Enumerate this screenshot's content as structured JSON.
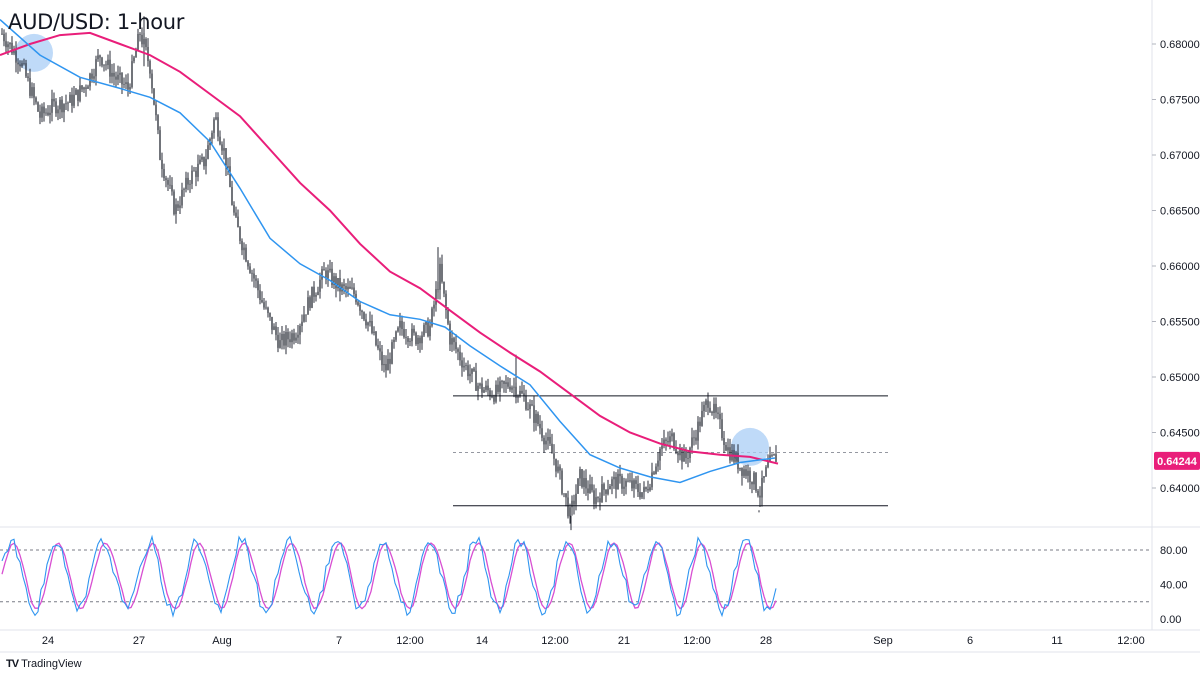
{
  "header": {
    "title": "AUD/USD: 1-hour"
  },
  "branding": {
    "logo_text": "TradingView"
  },
  "colors": {
    "candle": "#131722",
    "sma_fast": "#2f95f0",
    "sma_slow": "#e91e7a",
    "stoch_k": "#2f95f0",
    "stoch_d": "#d84fd2",
    "price_tag": "#e91e7a",
    "highlight": "#a9cdf5",
    "grid": "#e0e3eb"
  },
  "chart_data": {
    "type": "candlestick",
    "title": "AUD/USD: 1-hour",
    "y_axis": {
      "ticks": [
        "0.68000",
        "0.67500",
        "0.67000",
        "0.66500",
        "0.66000",
        "0.65500",
        "0.65000",
        "0.64500",
        "0.64000"
      ],
      "range": [
        0.6355,
        0.6825
      ]
    },
    "x_axis": {
      "ticks": [
        "24",
        "27",
        "Aug",
        "7",
        "12:00",
        "14",
        "12:00",
        "21",
        "12:00",
        "28",
        "Sep",
        "6",
        "11",
        "12:00"
      ]
    },
    "last_price": "0.64244",
    "price_path": [
      [
        0,
        0.6812
      ],
      [
        20,
        0.6785
      ],
      [
        40,
        0.6735
      ],
      [
        55,
        0.6745
      ],
      [
        70,
        0.6748
      ],
      [
        85,
        0.6762
      ],
      [
        100,
        0.679
      ],
      [
        115,
        0.677
      ],
      [
        128,
        0.676
      ],
      [
        140,
        0.681
      ],
      [
        150,
        0.678
      ],
      [
        160,
        0.67
      ],
      [
        175,
        0.665
      ],
      [
        190,
        0.668
      ],
      [
        205,
        0.6695
      ],
      [
        215,
        0.6735
      ],
      [
        225,
        0.67
      ],
      [
        235,
        0.664
      ],
      [
        250,
        0.66
      ],
      [
        265,
        0.656
      ],
      [
        280,
        0.653
      ],
      [
        295,
        0.654
      ],
      [
        310,
        0.657
      ],
      [
        325,
        0.6595
      ],
      [
        340,
        0.658
      ],
      [
        355,
        0.6575
      ],
      [
        370,
        0.6545
      ],
      [
        385,
        0.6505
      ],
      [
        400,
        0.6545
      ],
      [
        415,
        0.6535
      ],
      [
        430,
        0.6545
      ],
      [
        440,
        0.6595
      ],
      [
        450,
        0.6535
      ],
      [
        465,
        0.651
      ],
      [
        480,
        0.649
      ],
      [
        495,
        0.6485
      ],
      [
        510,
        0.6495
      ],
      [
        525,
        0.648
      ],
      [
        540,
        0.6455
      ],
      [
        555,
        0.6425
      ],
      [
        570,
        0.6375
      ],
      [
        580,
        0.641
      ],
      [
        595,
        0.639
      ],
      [
        610,
        0.6405
      ],
      [
        625,
        0.6405
      ],
      [
        645,
        0.6395
      ],
      [
        660,
        0.6435
      ],
      [
        672,
        0.6445
      ],
      [
        685,
        0.6425
      ],
      [
        698,
        0.6455
      ],
      [
        708,
        0.648
      ],
      [
        718,
        0.646
      ],
      [
        728,
        0.6435
      ],
      [
        740,
        0.642
      ],
      [
        752,
        0.641
      ],
      [
        760,
        0.6395
      ],
      [
        768,
        0.642
      ],
      [
        776,
        0.6428
      ]
    ],
    "sma_fast": [
      [
        0,
        0.6822
      ],
      [
        40,
        0.679
      ],
      [
        80,
        0.677
      ],
      [
        120,
        0.676
      ],
      [
        150,
        0.6752
      ],
      [
        180,
        0.6738
      ],
      [
        210,
        0.6712
      ],
      [
        240,
        0.667
      ],
      [
        270,
        0.6625
      ],
      [
        300,
        0.6602
      ],
      [
        330,
        0.6587
      ],
      [
        360,
        0.6568
      ],
      [
        390,
        0.6556
      ],
      [
        420,
        0.6552
      ],
      [
        445,
        0.6545
      ],
      [
        470,
        0.6528
      ],
      [
        500,
        0.651
      ],
      [
        530,
        0.6493
      ],
      [
        560,
        0.646
      ],
      [
        590,
        0.643
      ],
      [
        620,
        0.6418
      ],
      [
        650,
        0.641
      ],
      [
        680,
        0.6405
      ],
      [
        710,
        0.6415
      ],
      [
        740,
        0.6423
      ],
      [
        775,
        0.6427
      ]
    ],
    "sma_slow": [
      [
        0,
        0.679
      ],
      [
        30,
        0.68
      ],
      [
        60,
        0.6808
      ],
      [
        90,
        0.681
      ],
      [
        120,
        0.68
      ],
      [
        150,
        0.679
      ],
      [
        180,
        0.6775
      ],
      [
        210,
        0.6755
      ],
      [
        240,
        0.6735
      ],
      [
        270,
        0.6705
      ],
      [
        300,
        0.6675
      ],
      [
        330,
        0.665
      ],
      [
        360,
        0.662
      ],
      [
        390,
        0.6595
      ],
      [
        420,
        0.658
      ],
      [
        450,
        0.656
      ],
      [
        480,
        0.654
      ],
      [
        510,
        0.6522
      ],
      [
        540,
        0.6505
      ],
      [
        570,
        0.6485
      ],
      [
        600,
        0.6465
      ],
      [
        630,
        0.645
      ],
      [
        660,
        0.644
      ],
      [
        690,
        0.6433
      ],
      [
        720,
        0.643
      ],
      [
        750,
        0.6428
      ],
      [
        778,
        0.6422
      ]
    ],
    "range_box": {
      "top": 0.6483,
      "bottom": 0.6384,
      "mid": 0.6432,
      "x_start": 453,
      "x_end": 888
    },
    "highlights": [
      {
        "x": 34,
        "y": 0.6792
      },
      {
        "x": 750,
        "y": 0.6437
      }
    ],
    "stochastic": {
      "ticks": [
        "80.00",
        "40.00",
        "0.00"
      ],
      "levels": [
        80,
        20
      ],
      "range": [
        0,
        100
      ]
    }
  }
}
